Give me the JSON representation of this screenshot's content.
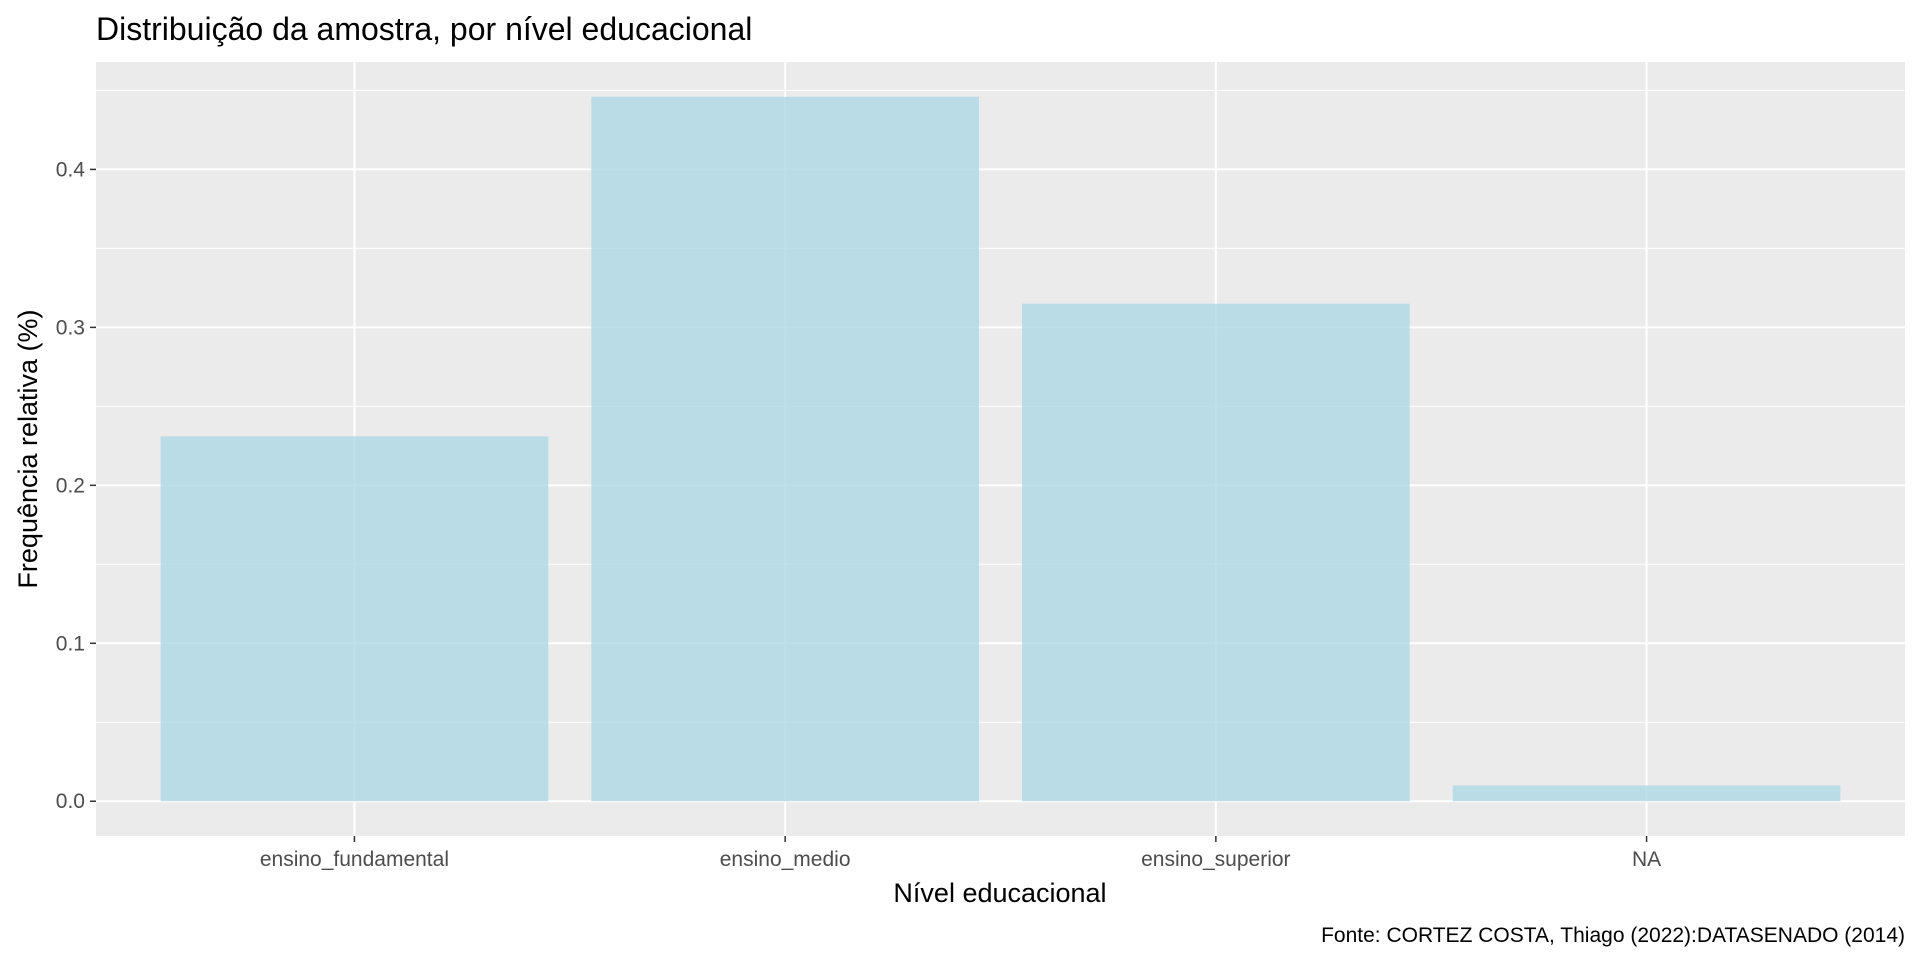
{
  "chart_data": {
    "type": "bar",
    "title": "Distribuição da amostra, por nível educacional",
    "xlabel": "Nível educacional",
    "ylabel": "Frequência relativa (%)",
    "caption": "Fonte: CORTEZ COSTA, Thiago (2022):DATASENADO (2014)",
    "categories": [
      "ensino_fundamental",
      "ensino_medio",
      "ensino_superior",
      "NA"
    ],
    "values": [
      0.231,
      0.446,
      0.315,
      0.01
    ],
    "ylim": [
      -0.022,
      0.468
    ],
    "yticks": [
      0.0,
      0.1,
      0.2,
      0.3,
      0.4
    ],
    "ytick_labels": [
      "0.0",
      "0.1",
      "0.2",
      "0.3",
      "0.4"
    ],
    "grid": true,
    "legend": "none",
    "colors": {
      "bar": "#add8e6",
      "panel": "#ebebeb",
      "grid": "#ffffff",
      "tick": "#333333"
    }
  }
}
